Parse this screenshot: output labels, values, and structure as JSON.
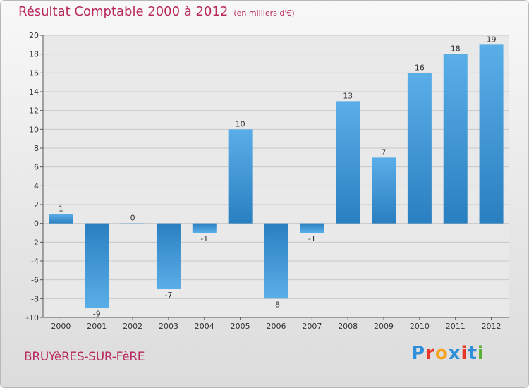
{
  "header": {
    "title": "Résultat Comptable 2000 à 2012",
    "subtitle": "(en milliers d'€)"
  },
  "footer": {
    "city": "BRUYèRES-SUR-FèRE",
    "logo_letters": [
      "P",
      "r",
      "o",
      "x",
      "i",
      "t",
      "i"
    ],
    "logo_colors": [
      "#2f8fd8",
      "#e8362a",
      "#f5a21b",
      "#2f8fd8",
      "#e8362a",
      "#2f8fd8",
      "#5bb136"
    ]
  },
  "colors": {
    "title": "#b8285c",
    "bar_light": "#5aaee8",
    "bar_dark": "#2a7fc0",
    "grid": "#c8c8c8"
  },
  "chart_data": {
    "type": "bar",
    "title": "Résultat Comptable 2000 à 2012",
    "subtitle": "(en milliers d'€)",
    "xlabel": "",
    "ylabel": "",
    "categories": [
      "2000",
      "2001",
      "2002",
      "2003",
      "2004",
      "2005",
      "2006",
      "2007",
      "2008",
      "2009",
      "2010",
      "2011",
      "2012"
    ],
    "values": [
      1,
      -9,
      0,
      -7,
      -1,
      10,
      -8,
      -1,
      13,
      7,
      16,
      18,
      19
    ],
    "ylim": [
      -10,
      20
    ],
    "yticks": [
      -10,
      -8,
      -6,
      -4,
      -2,
      0,
      2,
      4,
      6,
      8,
      10,
      12,
      14,
      16,
      18,
      20
    ],
    "grid": true
  }
}
